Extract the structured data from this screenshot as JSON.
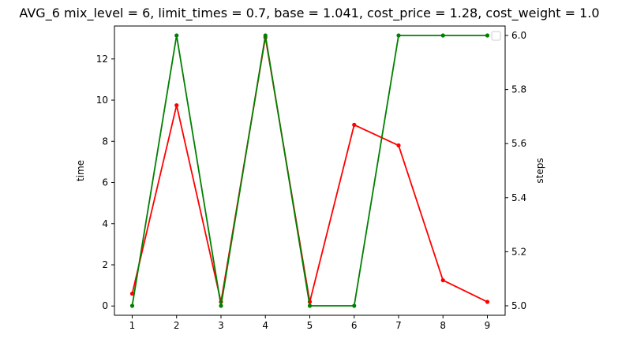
{
  "chart_data": {
    "type": "line",
    "title": "AVG_6 mix_level = 6, limit_times = 0.7, base = 1.041, cost_price = 1.28, cost_weight = 1.0",
    "xlabel": "",
    "ylabel": "time",
    "y2label": "steps",
    "x": [
      1,
      2,
      3,
      4,
      5,
      6,
      7,
      8,
      9
    ],
    "xticks": [
      "1",
      "2",
      "3",
      "4",
      "5",
      "6",
      "7",
      "8",
      "9"
    ],
    "xlim": [
      0.6,
      9.4
    ],
    "ylim": [
      -0.45,
      13.6
    ],
    "yticks": [
      "0",
      "2",
      "4",
      "6",
      "8",
      "10",
      "12"
    ],
    "y2lim": [
      4.965,
      6.035
    ],
    "y2ticks": [
      "5.0",
      "5.2",
      "5.4",
      "5.6",
      "5.8",
      "6.0"
    ],
    "series": [
      {
        "axis": "left",
        "color": "#ff0000",
        "values": [
          0.6,
          9.75,
          0.2,
          13.05,
          0.2,
          8.8,
          7.8,
          1.25,
          0.2
        ]
      },
      {
        "axis": "right",
        "color": "#008000",
        "values": [
          5.0,
          6.0,
          5.0,
          6.0,
          5.0,
          5.0,
          6.0,
          6.0,
          6.0
        ]
      }
    ],
    "legend": "upper right",
    "grid": false
  }
}
